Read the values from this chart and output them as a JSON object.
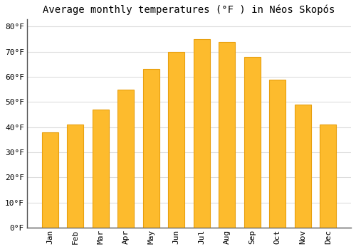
{
  "title": "Average monthly temperatures (°F ) in Néos Skopós",
  "months": [
    "Jan",
    "Feb",
    "Mar",
    "Apr",
    "May",
    "Jun",
    "Jul",
    "Aug",
    "Sep",
    "Oct",
    "Nov",
    "Dec"
  ],
  "values": [
    38,
    41,
    47,
    55,
    63,
    70,
    75,
    74,
    68,
    59,
    49,
    41
  ],
  "bar_color": "#FDBB2D",
  "bar_edge_color": "#E8A010",
  "background_color": "#FFFFFF",
  "plot_bg_color": "#FFFFFF",
  "grid_color": "#DDDDDD",
  "ylim": [
    0,
    83
  ],
  "yticks": [
    0,
    10,
    20,
    30,
    40,
    50,
    60,
    70,
    80
  ],
  "ytick_labels": [
    "0°F",
    "10°F",
    "20°F",
    "30°F",
    "40°F",
    "50°F",
    "60°F",
    "70°F",
    "80°F"
  ],
  "title_fontsize": 10,
  "tick_fontsize": 8,
  "font_family": "monospace",
  "bar_width": 0.65
}
